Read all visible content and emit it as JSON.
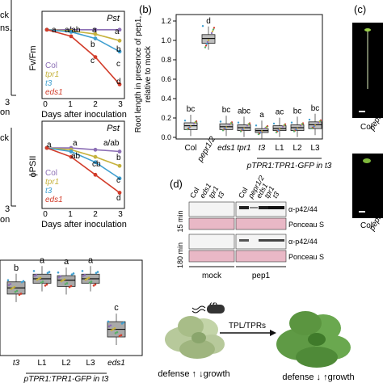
{
  "panel_b": {
    "label": "(b)",
    "ylabel_line1": "Root length in presence of pep1,",
    "ylabel_line2": "relative to mock",
    "yticks": [
      "0.0",
      "0.2",
      "0.4",
      "0.6",
      "0.8",
      "1.0",
      "1.2"
    ],
    "construct": "pTPR1:TPR1-GFP in t3"
  },
  "panel_c": {
    "label": "(c)",
    "names": [
      "Col",
      "pepr"
    ]
  },
  "panel_d": {
    "label": "(d)",
    "cols_left": [
      "Col",
      "eds1",
      "tpr1",
      "t3"
    ],
    "cols_right": [
      "Col",
      "pepr1/2",
      "eds1",
      "tpr1",
      "t3"
    ],
    "rows": [
      "15 min",
      "180 min"
    ],
    "signals": [
      "α-p42/44",
      "Ponceau S",
      "α-p42/44",
      "Ponceau S"
    ],
    "treatments": [
      "mock",
      "pep1"
    ]
  },
  "panel_f": {
    "label": "(f)",
    "arrow_label": "TPL/TPRs",
    "left_text": "defense ↑ ↓growth",
    "right_text": "defense ↓ ↑growth"
  },
  "panel_top": {
    "pst": "Pst",
    "ylabel_fv": "Fv/Fm",
    "ylabel_psii": "ϕPSII",
    "xlabel": "Days after inoculation",
    "xticks": [
      "0",
      "1",
      "2",
      "3"
    ],
    "legend": [
      "Col",
      "tpr1",
      "t3",
      "eds1"
    ],
    "fv_letters_top": [
      "a",
      "a/ab",
      "a"
    ],
    "fv_letters_end": [
      "a",
      "b",
      "c",
      "d"
    ],
    "fv_letters_mid": [
      "b",
      "c"
    ],
    "psii_letters_top": [
      "a",
      "a",
      "a/ab"
    ],
    "psii_letters_mid": [
      "ab",
      "cb",
      "b"
    ],
    "psii_letters_end": [
      "c",
      "d"
    ]
  },
  "panel_left": {
    "frag1": "ck",
    "frag2": "ns.",
    "frag3": "3",
    "frag4": "ck",
    "frag5": "on",
    "frag6": "3",
    "frag7": "on"
  },
  "panel_bottom": {
    "xticks": [
      "t3",
      "L1",
      "L2",
      "L3",
      "eds1"
    ],
    "letters": [
      "b",
      "a",
      "a",
      "a",
      "c"
    ],
    "construct": "pTPR1:TPR1-GFP in t3"
  },
  "chart_data": [
    {
      "type": "line",
      "title": "Pst",
      "xlabel": "Days after inoculation",
      "ylabel": "Fv/Fm",
      "x": [
        0,
        1,
        2,
        3
      ],
      "series": [
        {
          "name": "Col",
          "values": [
            0.8,
            0.8,
            0.8,
            0.8
          ]
        },
        {
          "name": "tpr1",
          "values": [
            0.8,
            0.79,
            0.76,
            0.7
          ]
        },
        {
          "name": "t3",
          "values": [
            0.8,
            0.78,
            0.72,
            0.6
          ]
        },
        {
          "name": "eds1",
          "values": [
            0.8,
            0.74,
            0.55,
            0.3
          ]
        }
      ],
      "colors": {
        "Col": "#8c6fb5",
        "tpr1": "#c6b23d",
        "t3": "#3f9fd0",
        "eds1": "#d23c2a"
      }
    },
    {
      "type": "line",
      "title": "Pst",
      "xlabel": "Days after inoculation",
      "ylabel": "ϕPSII",
      "x": [
        0,
        1,
        2,
        3
      ],
      "series": [
        {
          "name": "Col",
          "values": [
            0.5,
            0.5,
            0.49,
            0.48
          ]
        },
        {
          "name": "tpr1",
          "values": [
            0.5,
            0.49,
            0.45,
            0.4
          ]
        },
        {
          "name": "t3",
          "values": [
            0.5,
            0.48,
            0.42,
            0.33
          ]
        },
        {
          "name": "eds1",
          "values": [
            0.5,
            0.45,
            0.35,
            0.25
          ]
        }
      ],
      "colors": {
        "Col": "#8c6fb5",
        "tpr1": "#c6b23d",
        "t3": "#3f9fd0",
        "eds1": "#d23c2a"
      }
    },
    {
      "type": "box",
      "title": "(b)",
      "ylabel": "Root length in presence of pep1, relative to mock",
      "ylim": [
        0,
        1.25
      ],
      "categories": [
        "Col",
        "pepr1/2",
        "eds1",
        "tpr1",
        "t3",
        "L1",
        "L2",
        "L3"
      ],
      "medians": [
        0.12,
        1.02,
        0.11,
        0.1,
        0.07,
        0.09,
        0.1,
        0.13
      ],
      "q1": [
        0.08,
        0.97,
        0.08,
        0.07,
        0.05,
        0.07,
        0.07,
        0.09
      ],
      "q3": [
        0.15,
        1.06,
        0.14,
        0.13,
        0.09,
        0.12,
        0.13,
        0.16
      ],
      "letters": [
        "bc",
        "d",
        "bc",
        "abc",
        "a",
        "ac",
        "bc",
        "bc"
      ],
      "fill": [
        "#d0d0d0",
        "#bdbdbd",
        "#bdbdbd",
        "#bdbdbd",
        "#bdbdbd",
        "#bdbdbd",
        "#bdbdbd",
        "#bdbdbd"
      ]
    },
    {
      "type": "box",
      "categories": [
        "t3",
        "L1",
        "L2",
        "L3",
        "eds1"
      ],
      "letters": [
        "b",
        "a",
        "a",
        "a",
        "c"
      ],
      "medians": [
        0.72,
        0.78,
        0.77,
        0.78,
        0.45
      ],
      "q1": [
        0.68,
        0.75,
        0.73,
        0.75,
        0.4
      ],
      "q3": [
        0.76,
        0.81,
        0.8,
        0.81,
        0.5
      ]
    }
  ]
}
